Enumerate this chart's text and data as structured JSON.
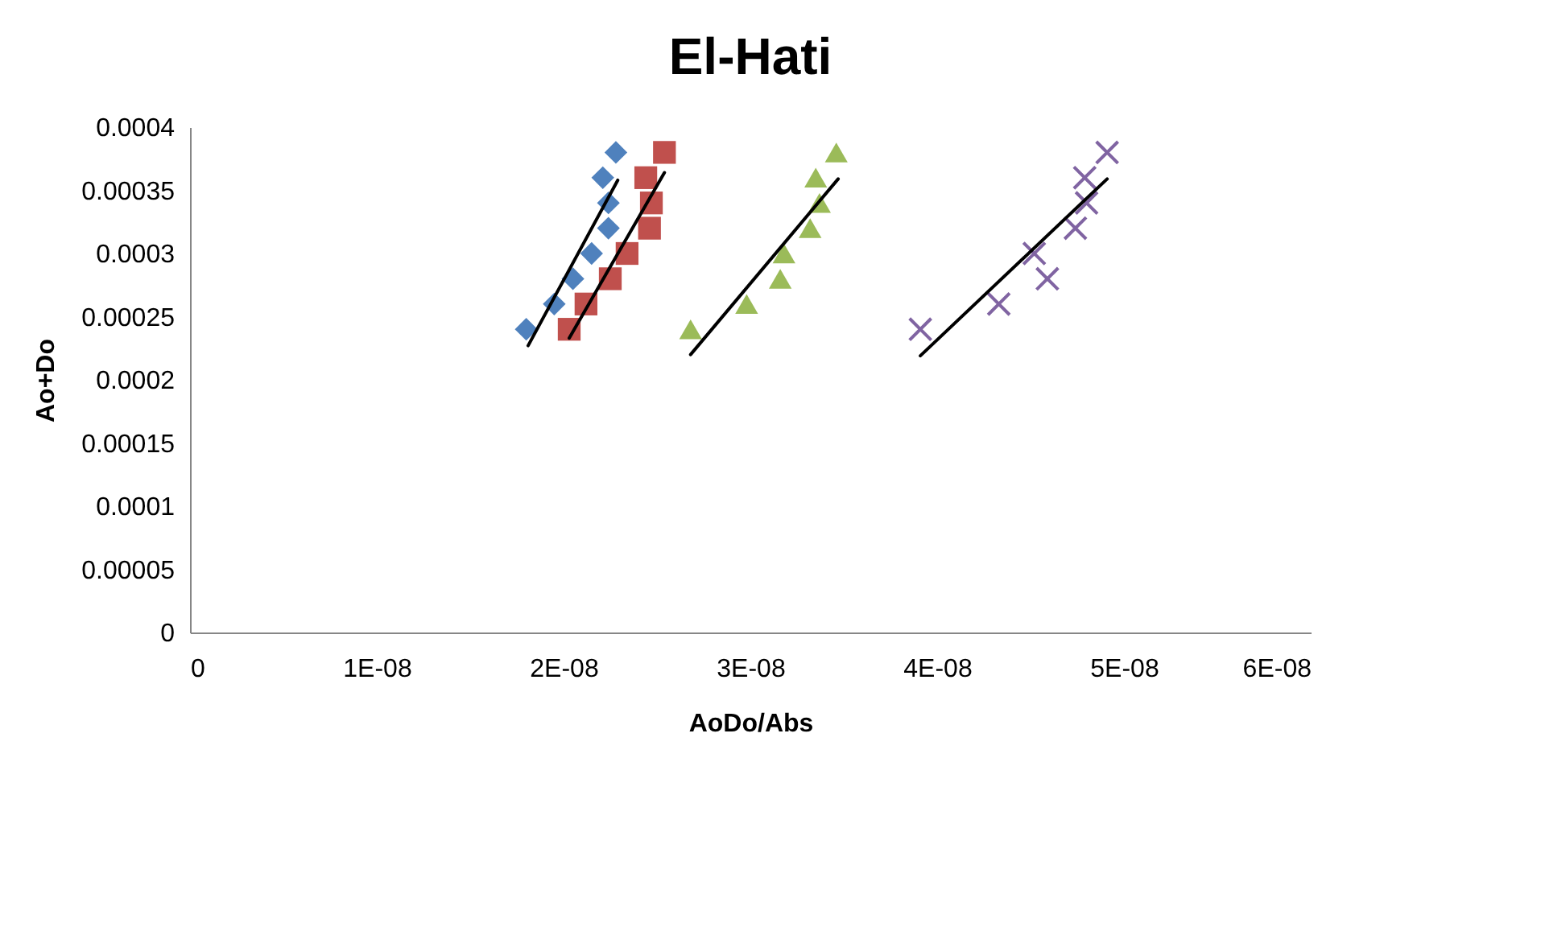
{
  "chart_data": {
    "type": "scatter",
    "title": "El-Hati",
    "xlabel": "AoDo/Abs",
    "ylabel": "Ao+Do",
    "xlim": [
      0,
      6e-08
    ],
    "ylim": [
      0,
      0.0004
    ],
    "xticks": [
      0,
      {
        "value": 1e-08,
        "label": "1E-08"
      },
      {
        "value": 2e-08,
        "label": "2E-08"
      },
      {
        "value": 3e-08,
        "label": "3E-08"
      },
      {
        "value": 4e-08,
        "label": "4E-08"
      },
      {
        "value": 5e-08,
        "label": "5E-08"
      },
      {
        "value": 6e-08,
        "label": "6E-08"
      }
    ],
    "yticks": [
      0,
      {
        "value": 5e-05,
        "label": "0.00005"
      },
      0.0001,
      0.00015,
      0.0002,
      0.00025,
      0.0003,
      0.00035,
      0.0004
    ],
    "grid": false,
    "series": [
      {
        "marker": "diamond",
        "color": "#4f81bd",
        "x": [
          1.8e-08,
          1.95e-08,
          2.05e-08,
          2.15e-08,
          2.24e-08,
          2.24e-08,
          2.21e-08,
          2.28e-08
        ],
        "values": [
          0.00024,
          0.00026,
          0.00028,
          0.0003,
          0.00032,
          0.00034,
          0.00036,
          0.00038
        ]
      },
      {
        "marker": "square",
        "color": "#c0504d",
        "x": [
          2.03e-08,
          2.12e-08,
          2.25e-08,
          2.34e-08,
          2.46e-08,
          2.47e-08,
          2.44e-08,
          2.54e-08
        ],
        "values": [
          0.00024,
          0.00026,
          0.00028,
          0.0003,
          0.00032,
          0.00034,
          0.00036,
          0.00038
        ]
      },
      {
        "marker": "triangle",
        "color": "#9bbb59",
        "x": [
          2.68e-08,
          2.98e-08,
          3.16e-08,
          3.18e-08,
          3.32e-08,
          3.37e-08,
          3.35e-08,
          3.46e-08
        ],
        "values": [
          0.00024,
          0.00026,
          0.00028,
          0.0003,
          0.00032,
          0.00034,
          0.00036,
          0.00038
        ]
      },
      {
        "marker": "cross",
        "color": "#8064a2",
        "x": [
          3.91e-08,
          4.33e-08,
          4.59e-08,
          4.52e-08,
          4.74e-08,
          4.8e-08,
          4.79e-08,
          4.91e-08
        ],
        "values": [
          0.00024,
          0.00026,
          0.00028,
          0.0003,
          0.00032,
          0.00034,
          0.00036,
          0.00038
        ]
      },
      {
        "type": "line",
        "marker": "none",
        "line_style": "solid",
        "color": "#000000",
        "x": [
          1.81e-08,
          2.29e-08
        ],
        "values": [
          0.000227,
          0.000358
        ]
      },
      {
        "type": "line",
        "marker": "none",
        "line_style": "solid",
        "color": "#000000",
        "x": [
          2.03e-08,
          2.54e-08
        ],
        "values": [
          0.000233,
          0.000364
        ]
      },
      {
        "type": "line",
        "marker": "none",
        "line_style": "solid",
        "color": "#000000",
        "x": [
          2.68e-08,
          3.47e-08
        ],
        "values": [
          0.00022,
          0.000359
        ]
      },
      {
        "type": "line",
        "marker": "none",
        "line_style": "solid",
        "color": "#000000",
        "x": [
          3.91e-08,
          4.91e-08
        ],
        "values": [
          0.000219,
          0.000359
        ]
      }
    ]
  }
}
